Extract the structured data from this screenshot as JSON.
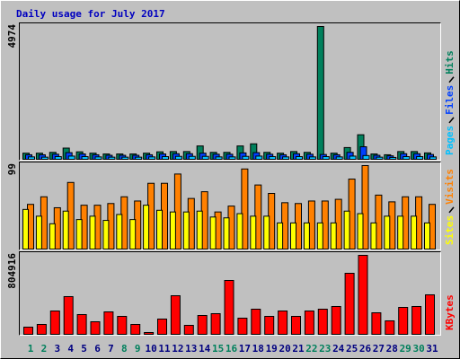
{
  "chart_data": [
    {
      "type": "bar",
      "title": "Daily usage for July 2017",
      "ylim": [
        0,
        4974
      ],
      "yticks": [
        4974
      ],
      "series": [
        {
          "name": "Hits",
          "color": "#00805c",
          "values": [
            230,
            230,
            260,
            420,
            280,
            230,
            200,
            200,
            200,
            230,
            280,
            290,
            290,
            500,
            260,
            260,
            500,
            580,
            260,
            230,
            290,
            260,
            4974,
            230,
            440,
            920,
            200,
            170,
            290,
            290,
            240
          ]
        },
        {
          "name": "Files",
          "color": "#0040ff",
          "values": [
            170,
            170,
            190,
            250,
            200,
            170,
            150,
            150,
            150,
            170,
            200,
            210,
            210,
            230,
            190,
            190,
            240,
            250,
            190,
            170,
            210,
            190,
            180,
            170,
            260,
            470,
            150,
            130,
            210,
            210,
            180
          ]
        },
        {
          "name": "Pages",
          "color": "#00c0ff",
          "values": [
            90,
            80,
            100,
            120,
            100,
            90,
            80,
            80,
            80,
            90,
            100,
            110,
            110,
            110,
            90,
            90,
            110,
            120,
            100,
            90,
            100,
            90,
            100,
            90,
            120,
            140,
            80,
            70,
            100,
            100,
            90
          ]
        }
      ]
    },
    {
      "type": "bar",
      "ylim": [
        0,
        99
      ],
      "yticks": [
        99
      ],
      "series": [
        {
          "name": "Visits",
          "color": "#ff8000",
          "values": [
            53,
            62,
            49,
            79,
            52,
            52,
            54,
            62,
            57,
            78,
            78,
            89,
            60,
            68,
            44,
            51,
            95,
            76,
            66,
            55,
            54,
            57,
            57,
            59,
            83,
            99,
            64,
            56,
            62,
            62,
            53
          ]
        },
        {
          "name": "Sites",
          "color": "#ffff00",
          "values": [
            47,
            39,
            30,
            45,
            35,
            39,
            34,
            41,
            35,
            52,
            46,
            44,
            44,
            45,
            38,
            37,
            42,
            39,
            39,
            31,
            31,
            31,
            31,
            31,
            45,
            42,
            31,
            39,
            39,
            39,
            31
          ]
        }
      ]
    },
    {
      "type": "bar",
      "ylim": [
        0,
        804916
      ],
      "yticks": [
        804916
      ],
      "categories": [
        "1",
        "2",
        "3",
        "4",
        "5",
        "6",
        "7",
        "8",
        "9",
        "10",
        "11",
        "12",
        "13",
        "14",
        "15",
        "16",
        "17",
        "18",
        "19",
        "20",
        "21",
        "22",
        "23",
        "24",
        "25",
        "26",
        "27",
        "28",
        "29",
        "30",
        "31"
      ],
      "label_colors": [
        "#00805c",
        "#00805c",
        "#000080",
        "#000080",
        "#000080",
        "#000080",
        "#000080",
        "#00805c",
        "#00805c",
        "#000080",
        "#000080",
        "#000080",
        "#000080",
        "#000080",
        "#00805c",
        "#00805c",
        "#000080",
        "#000080",
        "#000080",
        "#000080",
        "#000080",
        "#00805c",
        "#00805c",
        "#000080",
        "#000080",
        "#000080",
        "#000080",
        "#000080",
        "#00805c",
        "#00805c",
        "#000080"
      ],
      "series": [
        {
          "name": "KBytes",
          "color": "#ff0000",
          "values": [
            73000,
            100600,
            237800,
            384200,
            201200,
            128000,
            228700,
            182900,
            100600,
            18300,
            155500,
            393300,
            91500,
            192100,
            210400,
            548800,
            164600,
            256100,
            182900,
            237800,
            182900,
            237800,
            256100,
            283600,
            622000,
            804916,
            219500,
            137200,
            274400,
            283600,
            402500
          ]
        }
      ]
    }
  ]
}
